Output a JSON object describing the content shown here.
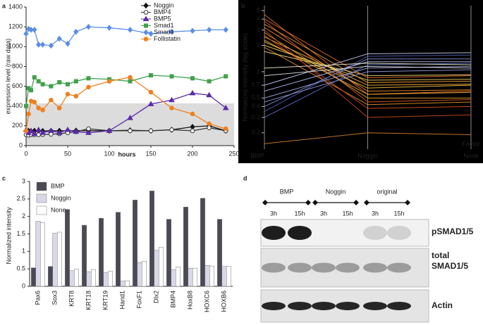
{
  "chart_data": [
    {
      "type": "line",
      "panel": "a",
      "ylabel": "expression level (raw data)",
      "xlabel": "hours",
      "xlim": [
        0,
        250
      ],
      "xticks": [
        0,
        50,
        100,
        150,
        200,
        250
      ],
      "ylim": [
        0,
        1400
      ],
      "yticks": [
        0,
        200,
        400,
        600,
        800,
        1000,
        1200,
        1400
      ],
      "x": [
        0,
        3,
        6,
        10,
        15,
        20,
        30,
        40,
        50,
        60,
        75,
        100,
        125,
        150,
        175,
        200,
        220,
        240
      ],
      "series": [
        {
          "name": "Noggin",
          "color": "#111111",
          "marker": "diamond",
          "values": [
            150,
            150,
            145,
            150,
            150,
            148,
            150,
            150,
            150,
            152,
            150,
            150,
            155,
            150,
            160,
            190,
            200,
            150
          ]
        },
        {
          "name": "BMP4",
          "color": "#333333",
          "marker": "open-circle",
          "values": [
            110,
            105,
            110,
            110,
            110,
            112,
            115,
            120,
            130,
            140,
            170,
            150,
            150,
            150,
            160,
            150,
            180,
            150
          ]
        },
        {
          "name": "BMP5",
          "color": "#5b2aa8",
          "marker": "triangle",
          "values": [
            160,
            130,
            150,
            120,
            160,
            130,
            150,
            130,
            160,
            140,
            130,
            150,
            280,
            420,
            460,
            530,
            510,
            380
          ]
        },
        {
          "name": "Smad1",
          "color": "#3fa14a",
          "marker": "square",
          "values": [
            400,
            580,
            560,
            690,
            650,
            620,
            600,
            640,
            620,
            650,
            680,
            670,
            650,
            710,
            700,
            680,
            650,
            700
          ]
        },
        {
          "name": "Smad4",
          "color": "#5b8ee6",
          "marker": "diamond",
          "values": [
            1130,
            1180,
            1170,
            1170,
            1020,
            1020,
            1010,
            1080,
            1030,
            1150,
            1200,
            1190,
            1170,
            1130,
            1150,
            1160,
            1170,
            1170
          ]
        },
        {
          "name": "Follistatin",
          "color": "#f07f1c",
          "marker": "circle",
          "values": [
            150,
            320,
            450,
            440,
            380,
            360,
            460,
            380,
            520,
            500,
            590,
            650,
            690,
            540,
            380,
            320,
            220,
            170
          ]
        }
      ]
    },
    {
      "type": "parallel",
      "panel": "b",
      "ylabel": "Normalized intensity (log scale)",
      "xlabel": "Factor",
      "categories": [
        "BMP",
        "Noggin",
        "None"
      ],
      "log_scale": true,
      "ylim": [
        0.13,
        5.7
      ],
      "yticks": [
        0.2,
        0.3,
        0.4,
        0.5,
        0.7,
        1,
        2,
        3,
        4,
        5
      ],
      "series": [
        {
          "color": "#e8702a",
          "values": [
            4.5,
            0.55,
            0.6
          ]
        },
        {
          "color": "#e05a20",
          "values": [
            3.8,
            0.45,
            0.48
          ]
        },
        {
          "color": "#f08a30",
          "values": [
            3.2,
            0.6,
            0.62
          ]
        },
        {
          "color": "#f0a030",
          "values": [
            2.8,
            0.5,
            0.5
          ]
        },
        {
          "color": "#f5b040",
          "values": [
            2.5,
            0.7,
            0.72
          ]
        },
        {
          "color": "#f7c040",
          "values": [
            2.2,
            0.65,
            0.7
          ]
        },
        {
          "color": "#f0d060",
          "values": [
            2.0,
            0.8,
            0.82
          ]
        },
        {
          "color": "#e8902a",
          "values": [
            1.9,
            0.42,
            0.45
          ]
        },
        {
          "color": "#d85020",
          "values": [
            2.6,
            0.38,
            0.4
          ]
        },
        {
          "color": "#f09a35",
          "values": [
            3.5,
            0.75,
            0.78
          ]
        },
        {
          "color": "#f2d870",
          "values": [
            1.7,
            0.9,
            0.92
          ]
        },
        {
          "color": "#f5a838",
          "values": [
            2.3,
            0.55,
            0.58
          ]
        },
        {
          "color": "#c84a20",
          "values": [
            3.0,
            0.3,
            0.32
          ]
        },
        {
          "color": "#e86a28",
          "values": [
            4.0,
            0.85,
            0.9
          ]
        },
        {
          "color": "#6070c0",
          "values": [
            0.3,
            1.2,
            1.25
          ]
        },
        {
          "color": "#8090d0",
          "values": [
            0.4,
            1.4,
            1.4
          ]
        },
        {
          "color": "#a0a8e0",
          "values": [
            0.5,
            1.1,
            1.15
          ]
        },
        {
          "color": "#5060b0",
          "values": [
            0.35,
            1.5,
            1.55
          ]
        },
        {
          "color": "#b0b8e8",
          "values": [
            0.6,
            1.3,
            1.3
          ]
        },
        {
          "color": "#9098d8",
          "values": [
            0.45,
            1.0,
            1.05
          ]
        },
        {
          "color": "#c8ccf0",
          "values": [
            0.7,
            1.6,
            1.65
          ]
        },
        {
          "color": "#e0e0e0",
          "values": [
            0.9,
            1.15,
            1.1
          ]
        },
        {
          "color": "#f0f0d0",
          "values": [
            1.1,
            1.25,
            1.2
          ]
        },
        {
          "color": "#d08030",
          "values": [
            0.15,
            0.2,
            0.19
          ]
        }
      ]
    },
    {
      "type": "bar",
      "panel": "c",
      "ylabel": "Normalized intensity",
      "categories": [
        "Pax6",
        "Sox3",
        "KRT8",
        "KRT18",
        "KRT19",
        "Hand1",
        "FoxF1",
        "Dlx2",
        "BMP4",
        "HoxB8",
        "HOXC6",
        "HOXB6"
      ],
      "ylim": [
        0,
        3
      ],
      "yticks": [
        0,
        0.5,
        1,
        1.5,
        2,
        2.5,
        3
      ],
      "series": [
        {
          "name": "BMP",
          "color": "#4a4a55",
          "values": [
            0.53,
            0.57,
            2.2,
            1.75,
            1.95,
            2.12,
            2.47,
            2.73,
            1.92,
            2.27,
            2.52,
            1.92
          ]
        },
        {
          "name": "Noggin",
          "color": "#d8d8e8",
          "values": [
            1.86,
            1.52,
            0.45,
            0.42,
            0.4,
            0.15,
            0.68,
            1.03,
            0.48,
            0.52,
            0.6,
            0.57
          ]
        },
        {
          "name": "None",
          "color": "#ffffff",
          "values": [
            1.82,
            1.55,
            0.5,
            0.48,
            0.43,
            0.16,
            0.72,
            1.12,
            0.55,
            0.52,
            0.58,
            0.57
          ]
        }
      ]
    }
  ],
  "blot": {
    "panel": "d",
    "groups": [
      "BMP",
      "Noggin",
      "original"
    ],
    "lanes": [
      "3h",
      "15h",
      "3h",
      "15h",
      "3h",
      "15h"
    ],
    "rows": [
      "pSMAD1/5",
      "total SMAD1/5",
      "Actin"
    ]
  }
}
